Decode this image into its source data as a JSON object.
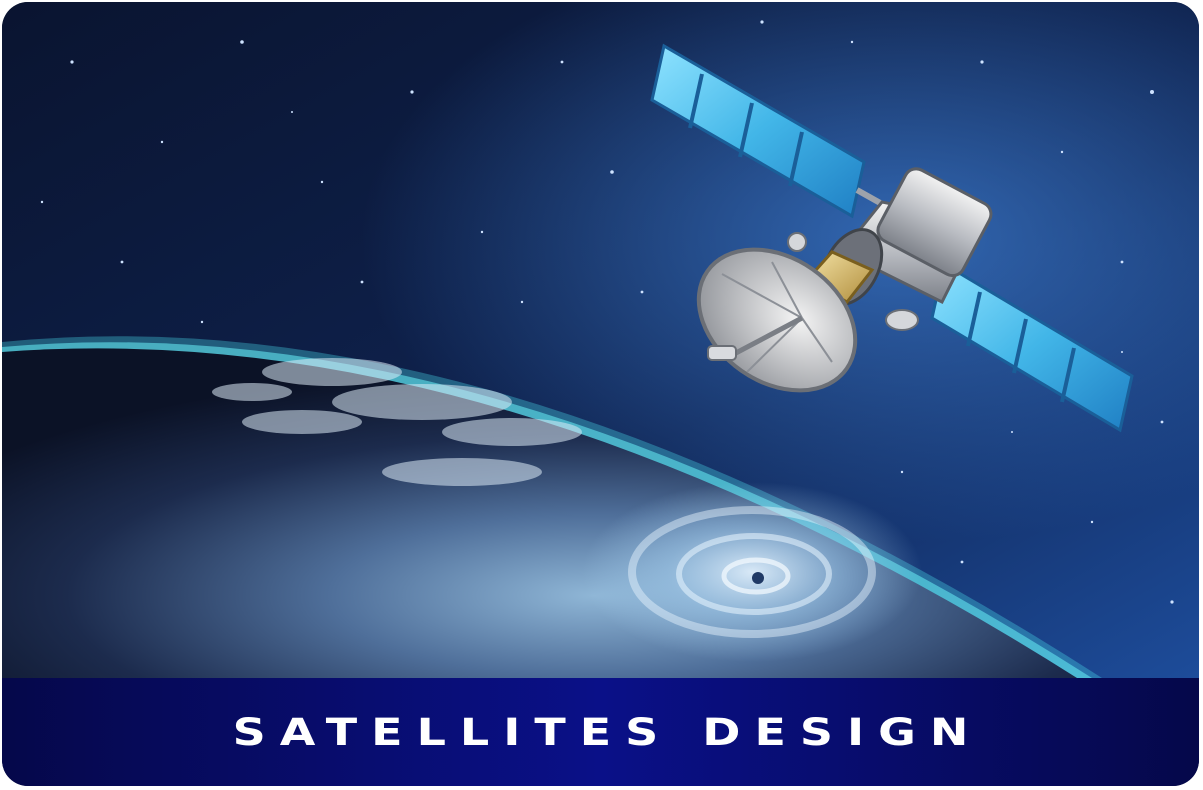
{
  "card": {
    "title": "SATELLITES DESIGN"
  },
  "scene": {
    "subjects": [
      "satellite",
      "earth"
    ],
    "palette": {
      "space_dark": "#0b1634",
      "space_glow": "#2f66b8",
      "atmosphere": "#49d8e8",
      "solar_panel": "#5ec8ef",
      "caption_bar": "#0a1088",
      "caption_text": "#ffffff"
    }
  }
}
